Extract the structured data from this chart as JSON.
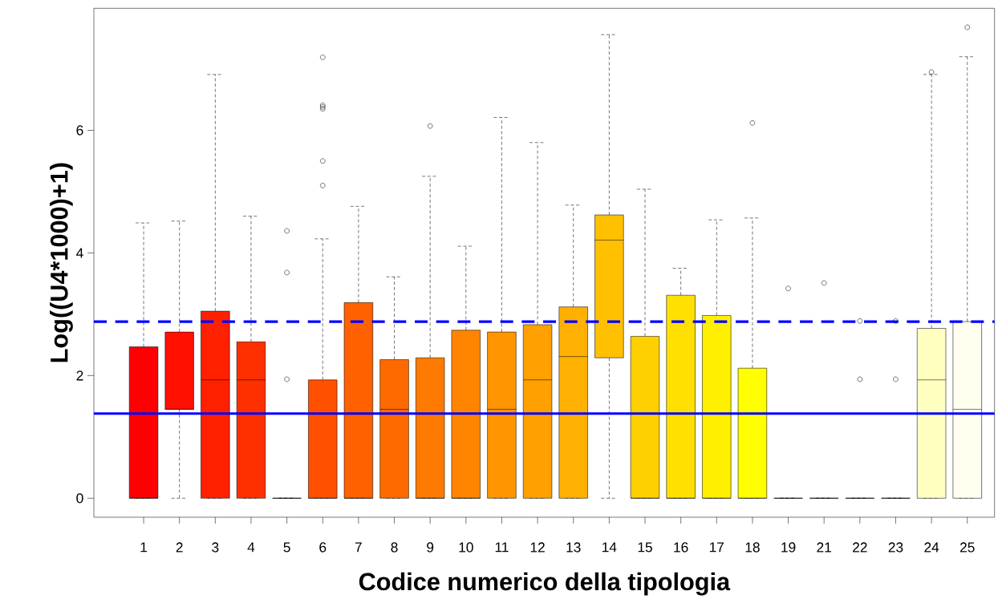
{
  "chart_data": {
    "type": "box",
    "xlabel": "Codice numerico della tipologia",
    "ylabel": "Log((U4*1000)+1)",
    "categories": [
      "1",
      "2",
      "3",
      "4",
      "5",
      "6",
      "7",
      "8",
      "9",
      "10",
      "11",
      "12",
      "13",
      "14",
      "15",
      "16",
      "17",
      "18",
      "19",
      "21",
      "22",
      "23",
      "24",
      "25"
    ],
    "colors": [
      "#ff0000",
      "#ff1000",
      "#ff2000",
      "#ff3000",
      "#000000",
      "#ff5000",
      "#ff6000",
      "#ff6a00",
      "#ff7a00",
      "#ff8500",
      "#ff9500",
      "#ffa000",
      "#ffb000",
      "#ffc000",
      "#ffd000",
      "#ffe000",
      "#fff000",
      "#ffff00",
      "#000000",
      "#000000",
      "#000000",
      "#000000",
      "#ffffc0",
      "#fffff0"
    ],
    "boxes": [
      {
        "low": 0,
        "q1": 0,
        "median": 0,
        "q3": 2.47,
        "high": 4.49
      },
      {
        "low": 0,
        "q1": 1.45,
        "median": 1.45,
        "q3": 2.71,
        "high": 4.52
      },
      {
        "low": 0,
        "q1": 0,
        "median": 1.93,
        "q3": 3.05,
        "high": 6.91
      },
      {
        "low": 0,
        "q1": 0,
        "median": 1.93,
        "q3": 2.55,
        "high": 4.6
      },
      {
        "low": 0,
        "q1": 0,
        "median": 0,
        "q3": 0,
        "high": 0,
        "outliers": [
          4.36,
          3.68,
          1.94
        ]
      },
      {
        "low": 0,
        "q1": 0,
        "median": 0,
        "q3": 1.93,
        "high": 4.23,
        "outliers": [
          7.19,
          6.41,
          6.38,
          6.35,
          5.5,
          5.1
        ]
      },
      {
        "low": 0,
        "q1": 0,
        "median": 0,
        "q3": 3.19,
        "high": 4.76
      },
      {
        "low": 0,
        "q1": 0,
        "median": 1.45,
        "q3": 2.26,
        "high": 3.61
      },
      {
        "low": 0,
        "q1": 0,
        "median": 0,
        "q3": 2.29,
        "high": 5.25,
        "outliers": [
          6.07
        ]
      },
      {
        "low": 0,
        "q1": 0,
        "median": 0,
        "q3": 2.74,
        "high": 4.11
      },
      {
        "low": 0,
        "q1": 0,
        "median": 1.45,
        "q3": 2.71,
        "high": 6.21
      },
      {
        "low": 0,
        "q1": 0,
        "median": 1.93,
        "q3": 2.83,
        "high": 5.8
      },
      {
        "low": 0,
        "q1": 0,
        "median": 2.31,
        "q3": 3.12,
        "high": 4.78
      },
      {
        "low": 0,
        "q1": 2.29,
        "median": 4.21,
        "q3": 4.62,
        "high": 7.56
      },
      {
        "low": 0,
        "q1": 0,
        "median": 0,
        "q3": 2.64,
        "high": 5.04
      },
      {
        "low": 0,
        "q1": 0,
        "median": 0,
        "q3": 3.31,
        "high": 3.75
      },
      {
        "low": 0,
        "q1": 0,
        "median": 0,
        "q3": 2.98,
        "high": 4.54
      },
      {
        "low": 0,
        "q1": 0,
        "median": 0,
        "q3": 2.12,
        "high": 4.57,
        "outliers": [
          6.12
        ]
      },
      {
        "low": 0,
        "q1": 0,
        "median": 0,
        "q3": 0,
        "high": 0,
        "outliers": [
          3.42
        ]
      },
      {
        "low": 0,
        "q1": 0,
        "median": 0,
        "q3": 0,
        "high": 0,
        "outliers": [
          3.51
        ]
      },
      {
        "low": 0,
        "q1": 0,
        "median": 0,
        "q3": 0,
        "high": 0,
        "outliers": [
          2.89,
          1.94
        ]
      },
      {
        "low": 0,
        "q1": 0,
        "median": 0,
        "q3": 0,
        "high": 0,
        "outliers": [
          2.89,
          1.94
        ]
      },
      {
        "low": 0,
        "q1": 0,
        "median": 1.93,
        "q3": 2.77,
        "high": 6.91,
        "outliers": [
          6.95
        ]
      },
      {
        "low": 0,
        "q1": 0,
        "median": 1.45,
        "q3": 2.88,
        "high": 7.2,
        "outliers": [
          7.68
        ]
      }
    ],
    "ylim": [
      -0.31,
      7.99
    ],
    "yticks": [
      0,
      2,
      4,
      6
    ],
    "ref_lines": [
      {
        "axis": "y",
        "value": 2.88,
        "color": "#0000ff",
        "line_style": "dashed"
      },
      {
        "axis": "y",
        "value": 1.38,
        "color": "#0000ff",
        "line_style": "solid"
      }
    ],
    "grid": false
  }
}
